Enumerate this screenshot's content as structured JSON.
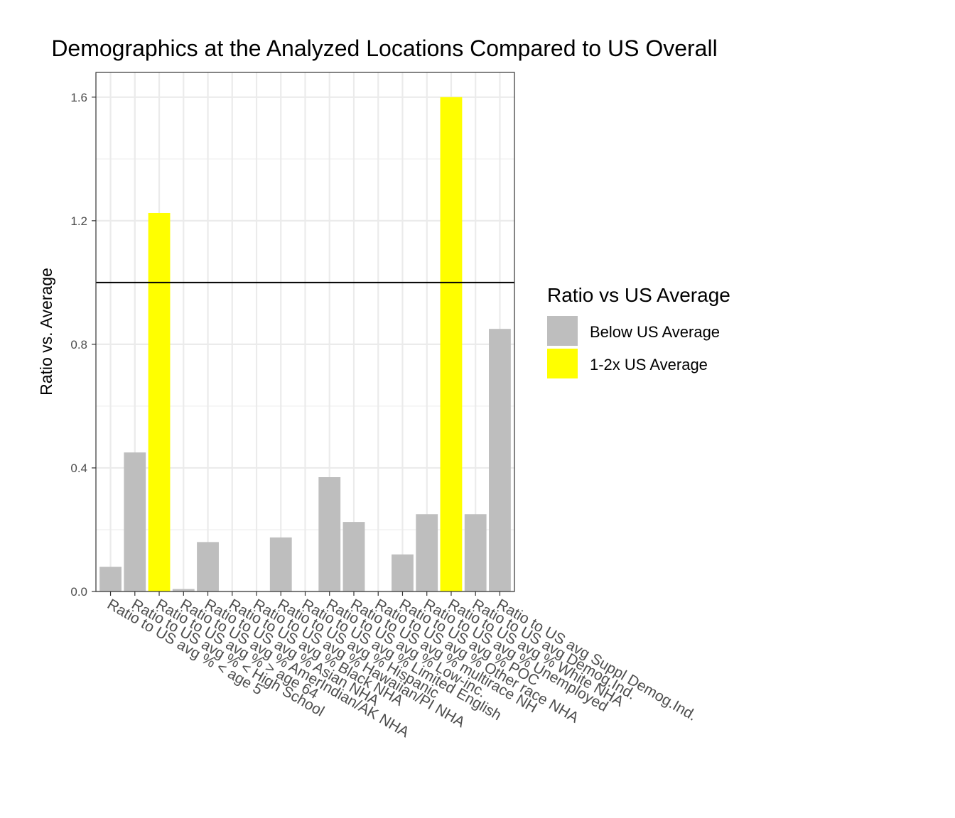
{
  "chart_data": {
    "type": "bar",
    "title": "Demographics at the Analyzed Locations Compared to US Overall",
    "xlabel": "",
    "ylabel": "Ratio vs. Average",
    "ylim": [
      0,
      1.68
    ],
    "yticks": [
      0.0,
      0.4,
      0.8,
      1.2,
      1.6
    ],
    "ytick_labels": [
      "0.0",
      "0.4",
      "0.8",
      "1.2",
      "1.6"
    ],
    "reference_line": 1.0,
    "grid": true,
    "categories": [
      "Ratio to US avg % < age 5",
      "Ratio to US avg % < High School",
      "Ratio to US avg % > age 64",
      "Ratio to US avg % AmerIndian/AK NHA",
      "Ratio to US avg % Asian NHA",
      "Ratio to US avg % Black NHA",
      "Ratio to US avg % Hawaiian/PI NHA",
      "Ratio to US avg % Hispanic",
      "Ratio to US avg % Limited English",
      "Ratio to US avg % Low-inc.",
      "Ratio to US avg % multirace NH",
      "Ratio to US avg % Other race NHA",
      "Ratio to US avg % POC",
      "Ratio to US avg % Unemployed",
      "Ratio to US avg % White NHA",
      "Ratio to US avg Demog.Ind.",
      "Ratio to US avg Suppl Demog.Ind."
    ],
    "values": [
      0.08,
      0.45,
      1.225,
      0.008,
      0.16,
      0.0,
      0.0,
      0.175,
      0.0,
      0.37,
      0.225,
      0.0,
      0.12,
      0.25,
      1.6,
      0.25,
      0.85
    ],
    "groups": [
      "below",
      "below",
      "above",
      "below",
      "below",
      "below",
      "below",
      "below",
      "below",
      "below",
      "below",
      "below",
      "below",
      "below",
      "above",
      "below",
      "below"
    ],
    "legend": {
      "title": "Ratio vs US Average",
      "placement": "right",
      "items": [
        {
          "key": "below",
          "label": "Below US Average",
          "color": "#bebebe"
        },
        {
          "key": "above",
          "label": "1-2x US Average",
          "color": "#ffff00"
        }
      ]
    }
  }
}
